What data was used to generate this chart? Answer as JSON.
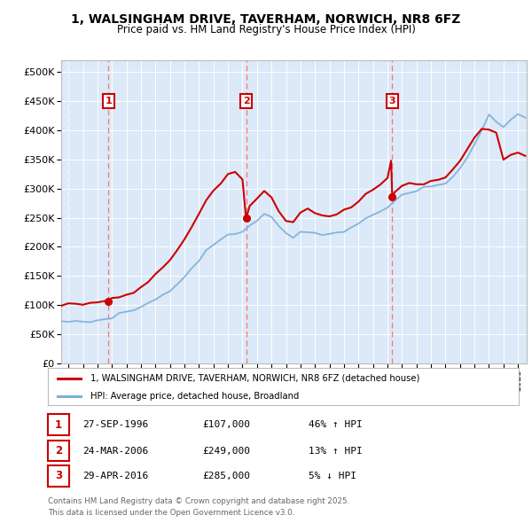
{
  "title_line1": "1, WALSINGHAM DRIVE, TAVERHAM, NORWICH, NR8 6FZ",
  "title_line2": "Price paid vs. HM Land Registry's House Price Index (HPI)",
  "legend_label_red": "1, WALSINGHAM DRIVE, TAVERHAM, NORWICH, NR8 6FZ (detached house)",
  "legend_label_blue": "HPI: Average price, detached house, Broadland",
  "footer": "Contains HM Land Registry data © Crown copyright and database right 2025.\nThis data is licensed under the Open Government Licence v3.0.",
  "sale_markers": [
    {
      "num": 1,
      "date": "27-SEP-1996",
      "price": 107000,
      "hpi_diff": "46% ↑ HPI",
      "year": 1996.75
    },
    {
      "num": 2,
      "date": "24-MAR-2006",
      "price": 249000,
      "hpi_diff": "13% ↑ HPI",
      "year": 2006.25
    },
    {
      "num": 3,
      "date": "29-APR-2016",
      "price": 285000,
      "hpi_diff": "5% ↓ HPI",
      "year": 2016.33
    }
  ],
  "ylim": [
    0,
    520000
  ],
  "yticks": [
    0,
    50000,
    100000,
    150000,
    200000,
    250000,
    300000,
    350000,
    400000,
    450000,
    500000
  ],
  "xlim_start": 1993.5,
  "xlim_end": 2025.6,
  "plot_bg_color": "#dce9f8",
  "grid_color": "#ffffff",
  "red_line_color": "#cc0000",
  "blue_line_color": "#7ab0d8",
  "dashed_line_color": "#ff6666",
  "marker_box_color": "#cc0000",
  "years_start": 1994,
  "years_end": 2025,
  "hpi_curve": [
    [
      1993.5,
      70000
    ],
    [
      1994.0,
      72000
    ],
    [
      1994.5,
      73000
    ],
    [
      1995.0,
      71000
    ],
    [
      1995.5,
      72000
    ],
    [
      1996.0,
      74000
    ],
    [
      1996.5,
      76000
    ],
    [
      1997.0,
      80000
    ],
    [
      1997.5,
      85000
    ],
    [
      1998.0,
      88000
    ],
    [
      1998.5,
      92000
    ],
    [
      1999.0,
      97000
    ],
    [
      1999.5,
      103000
    ],
    [
      2000.0,
      110000
    ],
    [
      2000.5,
      118000
    ],
    [
      2001.0,
      126000
    ],
    [
      2001.5,
      135000
    ],
    [
      2002.0,
      148000
    ],
    [
      2002.5,
      163000
    ],
    [
      2003.0,
      178000
    ],
    [
      2003.5,
      192000
    ],
    [
      2004.0,
      203000
    ],
    [
      2004.5,
      213000
    ],
    [
      2005.0,
      218000
    ],
    [
      2005.5,
      222000
    ],
    [
      2006.0,
      228000
    ],
    [
      2006.5,
      237000
    ],
    [
      2007.0,
      248000
    ],
    [
      2007.5,
      255000
    ],
    [
      2008.0,
      252000
    ],
    [
      2008.5,
      237000
    ],
    [
      2009.0,
      222000
    ],
    [
      2009.5,
      218000
    ],
    [
      2010.0,
      225000
    ],
    [
      2010.5,
      228000
    ],
    [
      2011.0,
      225000
    ],
    [
      2011.5,
      222000
    ],
    [
      2012.0,
      220000
    ],
    [
      2012.5,
      222000
    ],
    [
      2013.0,
      226000
    ],
    [
      2013.5,
      232000
    ],
    [
      2014.0,
      240000
    ],
    [
      2014.5,
      248000
    ],
    [
      2015.0,
      256000
    ],
    [
      2015.5,
      263000
    ],
    [
      2016.0,
      270000
    ],
    [
      2016.5,
      278000
    ],
    [
      2017.0,
      286000
    ],
    [
      2017.5,
      292000
    ],
    [
      2018.0,
      296000
    ],
    [
      2018.5,
      300000
    ],
    [
      2019.0,
      303000
    ],
    [
      2019.5,
      306000
    ],
    [
      2020.0,
      308000
    ],
    [
      2020.5,
      320000
    ],
    [
      2021.0,
      335000
    ],
    [
      2021.5,
      355000
    ],
    [
      2022.0,
      375000
    ],
    [
      2022.5,
      400000
    ],
    [
      2023.0,
      425000
    ],
    [
      2023.5,
      415000
    ],
    [
      2024.0,
      408000
    ],
    [
      2024.5,
      418000
    ],
    [
      2025.0,
      425000
    ],
    [
      2025.5,
      422000
    ]
  ],
  "prop_curve": [
    [
      1993.5,
      100000
    ],
    [
      1994.0,
      102000
    ],
    [
      1994.5,
      102500
    ],
    [
      1995.0,
      100000
    ],
    [
      1995.5,
      102000
    ],
    [
      1996.0,
      104000
    ],
    [
      1996.5,
      105000
    ],
    [
      1996.75,
      107000
    ],
    [
      1997.0,
      110000
    ],
    [
      1997.5,
      115000
    ],
    [
      1998.0,
      119000
    ],
    [
      1998.5,
      123000
    ],
    [
      1999.0,
      130000
    ],
    [
      1999.5,
      140000
    ],
    [
      2000.0,
      152000
    ],
    [
      2000.5,
      164000
    ],
    [
      2001.0,
      177000
    ],
    [
      2001.5,
      191000
    ],
    [
      2002.0,
      212000
    ],
    [
      2002.5,
      234000
    ],
    [
      2003.0,
      258000
    ],
    [
      2003.5,
      278000
    ],
    [
      2004.0,
      295000
    ],
    [
      2004.5,
      310000
    ],
    [
      2005.0,
      325000
    ],
    [
      2005.5,
      328000
    ],
    [
      2006.0,
      318000
    ],
    [
      2006.25,
      249000
    ],
    [
      2006.5,
      268000
    ],
    [
      2007.0,
      285000
    ],
    [
      2007.5,
      295000
    ],
    [
      2008.0,
      282000
    ],
    [
      2008.5,
      262000
    ],
    [
      2009.0,
      245000
    ],
    [
      2009.5,
      242000
    ],
    [
      2010.0,
      258000
    ],
    [
      2010.5,
      265000
    ],
    [
      2011.0,
      260000
    ],
    [
      2011.5,
      255000
    ],
    [
      2012.0,
      252000
    ],
    [
      2012.5,
      256000
    ],
    [
      2013.0,
      262000
    ],
    [
      2013.5,
      268000
    ],
    [
      2014.0,
      278000
    ],
    [
      2014.5,
      288000
    ],
    [
      2015.0,
      298000
    ],
    [
      2015.5,
      308000
    ],
    [
      2016.0,
      318000
    ],
    [
      2016.25,
      348000
    ],
    [
      2016.33,
      285000
    ],
    [
      2016.5,
      293000
    ],
    [
      2017.0,
      305000
    ],
    [
      2017.5,
      310000
    ],
    [
      2018.0,
      308000
    ],
    [
      2018.5,
      305000
    ],
    [
      2019.0,
      310000
    ],
    [
      2019.5,
      315000
    ],
    [
      2020.0,
      318000
    ],
    [
      2020.5,
      332000
    ],
    [
      2021.0,
      348000
    ],
    [
      2021.5,
      368000
    ],
    [
      2022.0,
      388000
    ],
    [
      2022.5,
      405000
    ],
    [
      2023.0,
      402000
    ],
    [
      2023.5,
      395000
    ],
    [
      2024.0,
      348000
    ],
    [
      2024.5,
      358000
    ],
    [
      2025.0,
      362000
    ],
    [
      2025.5,
      355000
    ]
  ]
}
